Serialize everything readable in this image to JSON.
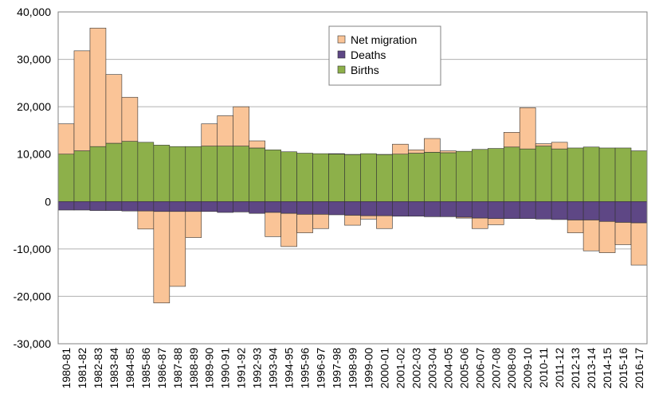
{
  "chart_data": {
    "type": "stacked_bar",
    "categories": [
      "1980-81",
      "1981-82",
      "1982-83",
      "1983-84",
      "1984-85",
      "1985-86",
      "1986-87",
      "1987-88",
      "1988-89",
      "1989-90",
      "1990-91",
      "1991-92",
      "1992-93",
      "1993-94",
      "1994-95",
      "1995-96",
      "1996-97",
      "1997-98",
      "1998-99",
      "1999-00",
      "2000-01",
      "2001-02",
      "2002-03",
      "2003-04",
      "2004-05",
      "2005-06",
      "2006-07",
      "2007-08",
      "2008-09",
      "2009-10",
      "2010-11",
      "2011-12",
      "2012-13",
      "2013-14",
      "2014-15",
      "2015-16",
      "2016-17"
    ],
    "series": [
      {
        "name": "Births",
        "color": "#8db04a",
        "values": [
          10000,
          10700,
          11600,
          12300,
          12700,
          12500,
          11900,
          11600,
          11600,
          11700,
          11700,
          11700,
          11300,
          10900,
          10500,
          10200,
          10100,
          10000,
          9900,
          10100,
          9900,
          10000,
          10200,
          10400,
          10300,
          10600,
          11000,
          11200,
          11500,
          11100,
          11700,
          11100,
          11300,
          11500,
          11300,
          11300,
          10700
        ]
      },
      {
        "name": "Deaths",
        "color": "#5e4785",
        "values": [
          -1800,
          -1800,
          -1900,
          -1900,
          -2000,
          -2000,
          -2100,
          -2100,
          -2100,
          -2100,
          -2300,
          -2200,
          -2500,
          -2300,
          -2500,
          -2700,
          -2700,
          -2800,
          -2900,
          -3000,
          -3000,
          -3100,
          -3100,
          -3200,
          -3200,
          -3300,
          -3500,
          -3600,
          -3600,
          -3600,
          -3700,
          -3800,
          -3900,
          -3900,
          -4200,
          -4400,
          -4500
        ]
      },
      {
        "name": "Net migration",
        "color": "#fac497",
        "values": [
          6400,
          21100,
          25000,
          14500,
          9300,
          -3800,
          -19300,
          -15800,
          -5500,
          4700,
          6400,
          8300,
          1500,
          -5100,
          -7000,
          -3900,
          -3000,
          100,
          -2100,
          -700,
          -2700,
          2100,
          700,
          2900,
          400,
          -200,
          -2200,
          -1300,
          3100,
          8700,
          500,
          1400,
          -2700,
          -6500,
          -6600,
          -4700,
          -8900
        ]
      }
    ],
    "ylim": [
      -30000,
      40000
    ],
    "yticks": [
      {
        "value": -30000,
        "label": "-30,000"
      },
      {
        "value": -20000,
        "label": "-20,000"
      },
      {
        "value": -10000,
        "label": "-10,000"
      },
      0,
      {
        "value": 10000,
        "label": "10,000"
      },
      {
        "value": 20000,
        "label": "20,000"
      },
      {
        "value": 30000,
        "label": "30,000"
      },
      {
        "value": 40000,
        "label": "40,000"
      }
    ],
    "grid": true
  }
}
